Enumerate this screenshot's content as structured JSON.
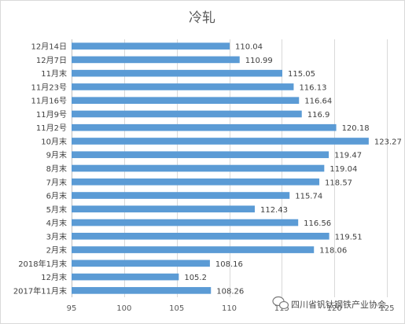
{
  "chart_data": {
    "type": "bar",
    "orientation": "horizontal",
    "title": "冷轧",
    "xlabel": "",
    "ylabel": "",
    "xlim": [
      95,
      125
    ],
    "x_ticks": [
      95,
      100,
      105,
      110,
      115,
      120,
      125
    ],
    "grid": true,
    "bar_color": "#5b9bd5",
    "categories": [
      "12月14日",
      "12月7日",
      "11月末",
      "11月23号",
      "11月16号",
      "11月9号",
      "11月2号",
      "10月末",
      "9月末",
      "8月末",
      "7月末",
      "6月末",
      "5月末",
      "4月末",
      "3月末",
      "2月末",
      "2018年1月末",
      "12月末",
      "2017年11月末"
    ],
    "values": [
      110.04,
      110.99,
      115.05,
      116.13,
      116.64,
      116.9,
      120.18,
      123.27,
      119.47,
      119.04,
      118.57,
      115.74,
      112.43,
      116.56,
      119.51,
      118.06,
      108.16,
      105.2,
      108.26
    ],
    "value_labels": [
      "110.04",
      "110.99",
      "115.05",
      "116.13",
      "116.64",
      "116.9",
      "120.18",
      "123.27",
      "119.47",
      "119.04",
      "118.57",
      "115.74",
      "112.43",
      "116.56",
      "119.51",
      "118.06",
      "108.16",
      "105.2",
      "108.26"
    ]
  },
  "watermark": {
    "text": "四川省钒钛钢铁产业协会",
    "icon": "wechat-bubble-icon"
  }
}
